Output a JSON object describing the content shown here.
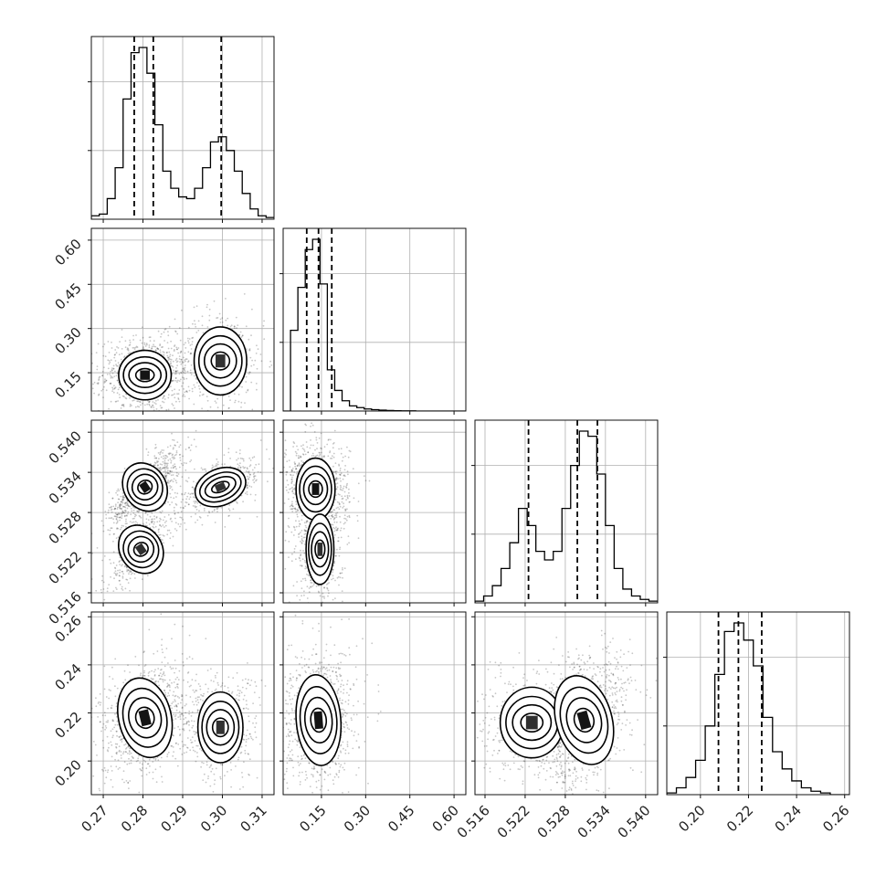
{
  "chart_data": {
    "type": "corner",
    "title": "",
    "grid": true,
    "parameters": [
      {
        "name": "",
        "range": [
          0.267,
          0.313
        ],
        "ticks": [
          "0.27",
          "0.28",
          "0.29",
          "0.30",
          "0.31"
        ],
        "tick_values": [
          0.27,
          0.28,
          0.29,
          0.3,
          0.31
        ],
        "quantiles": [
          0.2778,
          0.2826,
          0.2997
        ],
        "hist_bins": [
          0.267,
          0.269,
          0.271,
          0.273,
          0.275,
          0.277,
          0.279,
          0.281,
          0.283,
          0.285,
          0.287,
          0.289,
          0.291,
          0.293,
          0.295,
          0.297,
          0.299,
          0.301,
          0.303,
          0.305,
          0.307,
          0.309,
          0.311,
          0.313
        ],
        "hist_counts": [
          0.02,
          0.03,
          0.12,
          0.3,
          0.7,
          0.97,
          1.0,
          0.85,
          0.55,
          0.28,
          0.18,
          0.13,
          0.12,
          0.18,
          0.3,
          0.45,
          0.48,
          0.4,
          0.28,
          0.15,
          0.06,
          0.02,
          0.01
        ]
      },
      {
        "name": "",
        "range": [
          0.02,
          0.64
        ],
        "ticks": [
          "0.15",
          "0.30",
          "0.45",
          "0.60"
        ],
        "tick_values": [
          0.15,
          0.3,
          0.45,
          0.6
        ],
        "quantiles": [
          0.1,
          0.14,
          0.185
        ],
        "hist_bins": [
          0.02,
          0.045,
          0.07,
          0.095,
          0.12,
          0.145,
          0.17,
          0.195,
          0.22,
          0.245,
          0.27,
          0.295,
          0.32,
          0.345,
          0.37,
          0.395,
          0.42,
          0.445,
          0.47,
          0.495,
          0.52,
          0.545,
          0.57,
          0.595,
          0.62,
          0.64
        ],
        "hist_counts": [
          0.0,
          0.47,
          0.72,
          0.94,
          1.0,
          0.74,
          0.24,
          0.12,
          0.06,
          0.03,
          0.02,
          0.012,
          0.008,
          0.005,
          0.003,
          0.002,
          0.001,
          0.001,
          0.0,
          0.0,
          0.0,
          0.0,
          0.0,
          0.0,
          0.0
        ]
      },
      {
        "name": "",
        "range": [
          0.5145,
          0.5418
        ],
        "ticks": [
          "0.516",
          "0.522",
          "0.528",
          "0.534",
          "0.540"
        ],
        "tick_values": [
          0.516,
          0.522,
          0.528,
          0.534,
          0.54
        ],
        "quantiles": [
          0.5225,
          0.5298,
          0.5328
        ],
        "hist_bins": [
          0.5145,
          0.5158,
          0.5171,
          0.5184,
          0.5197,
          0.521,
          0.5223,
          0.5236,
          0.5249,
          0.5262,
          0.5275,
          0.5288,
          0.5301,
          0.5314,
          0.5327,
          0.534,
          0.5353,
          0.5366,
          0.5379,
          0.5392,
          0.5405,
          0.5418
        ],
        "hist_counts": [
          0.01,
          0.04,
          0.1,
          0.2,
          0.35,
          0.55,
          0.45,
          0.3,
          0.25,
          0.3,
          0.55,
          0.8,
          1.0,
          0.97,
          0.75,
          0.45,
          0.2,
          0.08,
          0.04,
          0.02,
          0.01
        ]
      },
      {
        "name": "",
        "range": [
          0.186,
          0.262
        ],
        "ticks": [
          "0.20",
          "0.22",
          "0.24",
          "0.26"
        ],
        "tick_values": [
          0.2,
          0.22,
          0.24,
          0.26
        ],
        "quantiles": [
          0.2075,
          0.2158,
          0.2255
        ],
        "hist_bins": [
          0.186,
          0.19,
          0.194,
          0.198,
          0.202,
          0.206,
          0.21,
          0.214,
          0.218,
          0.222,
          0.226,
          0.23,
          0.234,
          0.238,
          0.242,
          0.246,
          0.25,
          0.254,
          0.258,
          0.262
        ],
        "hist_counts": [
          0.01,
          0.04,
          0.1,
          0.2,
          0.4,
          0.7,
          0.95,
          1.0,
          0.9,
          0.75,
          0.45,
          0.25,
          0.15,
          0.08,
          0.04,
          0.02,
          0.01,
          0.0,
          0.0
        ]
      }
    ],
    "joint_modes": [
      {
        "pair": [
          0,
          1
        ],
        "modes": [
          {
            "cx": 0.2805,
            "cy": 0.142,
            "sx": 0.0035,
            "sy": 0.04,
            "rho": 0.0,
            "w": 1.0
          },
          {
            "cx": 0.2995,
            "cy": 0.19,
            "sx": 0.0035,
            "sy": 0.055,
            "rho": 0.0,
            "w": 0.5
          }
        ]
      },
      {
        "pair": [
          0,
          2
        ],
        "modes": [
          {
            "cx": 0.2805,
            "cy": 0.5318,
            "sx": 0.0028,
            "sy": 0.0018,
            "rho": 0.75,
            "w": 1.0
          },
          {
            "cx": 0.2795,
            "cy": 0.5225,
            "sx": 0.0028,
            "sy": 0.0018,
            "rho": 0.75,
            "w": 0.55
          },
          {
            "cx": 0.2995,
            "cy": 0.5318,
            "sx": 0.0035,
            "sy": 0.0013,
            "rho": 0.5,
            "w": 0.5
          }
        ]
      },
      {
        "pair": [
          0,
          3
        ],
        "modes": [
          {
            "cx": 0.2805,
            "cy": 0.218,
            "sx": 0.0035,
            "sy": 0.008,
            "rho": 0.3,
            "w": 1.0
          },
          {
            "cx": 0.2995,
            "cy": 0.214,
            "sx": 0.003,
            "sy": 0.007,
            "rho": 0.0,
            "w": 0.5
          }
        ]
      },
      {
        "pair": [
          1,
          2
        ],
        "modes": [
          {
            "cx": 0.13,
            "cy": 0.5315,
            "sx": 0.035,
            "sy": 0.0022,
            "rho": 0.0,
            "w": 1.0
          },
          {
            "cx": 0.145,
            "cy": 0.5225,
            "sx": 0.025,
            "sy": 0.0025,
            "rho": 0.0,
            "w": 0.55
          }
        ]
      },
      {
        "pair": [
          1,
          3
        ],
        "modes": [
          {
            "cx": 0.14,
            "cy": 0.217,
            "sx": 0.04,
            "sy": 0.009,
            "rho": 0.1,
            "w": 1.0
          }
        ]
      },
      {
        "pair": [
          2,
          3
        ],
        "modes": [
          {
            "cx": 0.523,
            "cy": 0.216,
            "sx": 0.0025,
            "sy": 0.007,
            "rho": 0.0,
            "w": 0.55
          },
          {
            "cx": 0.5308,
            "cy": 0.217,
            "sx": 0.0022,
            "sy": 0.009,
            "rho": 0.35,
            "w": 1.0
          }
        ]
      }
    ]
  }
}
